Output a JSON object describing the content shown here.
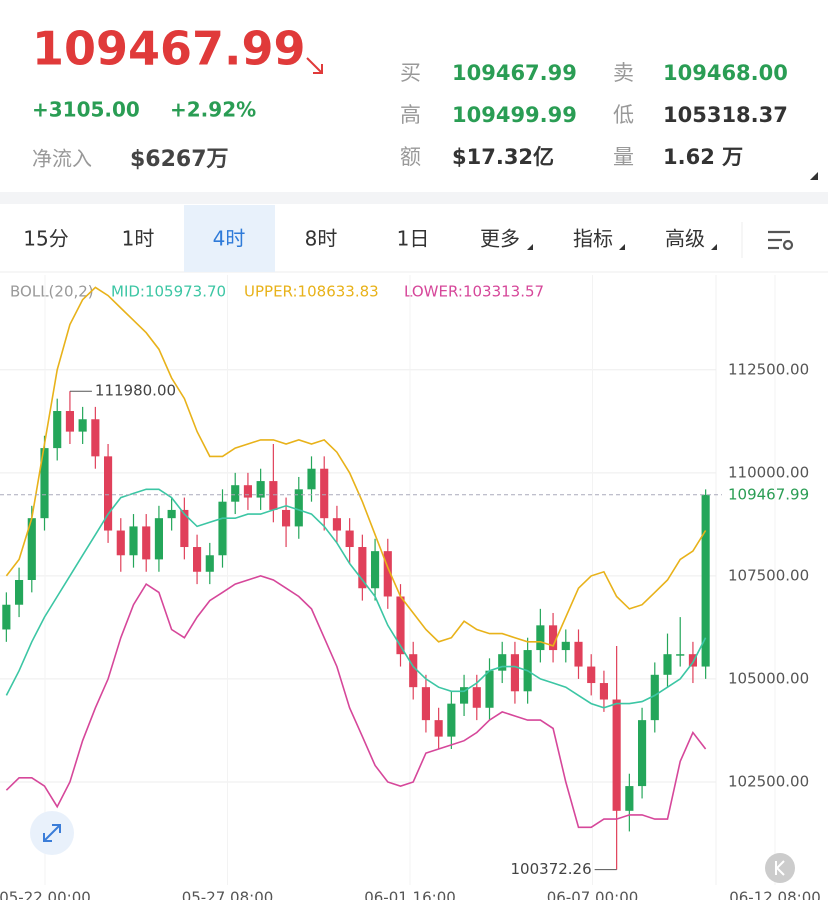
{
  "header": {
    "price": "109467.99",
    "change": "+3105.00",
    "change_pct": "+2.92%",
    "net_inflow_label": "净流入",
    "net_inflow": "$6267万",
    "stats": [
      {
        "label": "买",
        "value": "109467.99",
        "color": "#2a9d54"
      },
      {
        "label": "卖",
        "value": "109468.00",
        "color": "#2a9d54"
      },
      {
        "label": "高",
        "value": "109499.99",
        "color": "#2a9d54"
      },
      {
        "label": "低",
        "value": "105318.37",
        "color": "#333333"
      },
      {
        "label": "额",
        "value": "$17.32亿",
        "color": "#333333"
      },
      {
        "label": "量",
        "value": "1.62 万",
        "color": "#333333"
      }
    ]
  },
  "tabs": [
    "15分",
    "1时",
    "4时",
    "8时",
    "1日",
    "更多",
    "指标",
    "高级"
  ],
  "selected_tab": 2,
  "indicator": {
    "name": "BOLL(20,2)",
    "mid": "MID:105973.70",
    "upper": "UPPER:108633.83",
    "lower": "LOWER:103313.57"
  },
  "chart_data": {
    "type": "candlestick",
    "up_color": "#24a65a",
    "down_color": "#e0405a",
    "open": [
      106200,
      106800,
      107400,
      108900,
      110600,
      111500,
      111000,
      111300,
      110400,
      108600,
      108000,
      108700,
      107900,
      108900,
      109100,
      108200,
      107600,
      108000,
      109300,
      109700,
      109400,
      109800,
      109100,
      108700,
      109600,
      110100,
      108900,
      108600,
      108200,
      107200,
      108100,
      107000,
      105600,
      104800,
      104000,
      103600,
      104400,
      104800,
      104300,
      105200,
      105600,
      104700,
      105700,
      106300,
      105700,
      105900,
      105300,
      104900,
      104500,
      101800,
      102400,
      104000,
      105100,
      105600,
      105600,
      105300
    ],
    "high": [
      107100,
      107700,
      109200,
      110900,
      111800,
      111980,
      111600,
      111600,
      110700,
      108900,
      109000,
      109000,
      109200,
      109400,
      109400,
      108500,
      108300,
      109600,
      110000,
      110000,
      110100,
      110700,
      109400,
      109900,
      110400,
      110400,
      109200,
      108900,
      108500,
      108400,
      108400,
      107300,
      105900,
      105100,
      104300,
      104700,
      105100,
      105100,
      105500,
      105900,
      105900,
      106000,
      106700,
      106600,
      106200,
      106200,
      105600,
      105200,
      105800,
      102700,
      104300,
      105400,
      106100,
      106500,
      105900,
      109600
    ],
    "low": [
      105900,
      106500,
      107100,
      108600,
      110300,
      110700,
      110700,
      110100,
      108300,
      107600,
      107700,
      107600,
      107600,
      108600,
      107900,
      107300,
      107300,
      107700,
      109000,
      109100,
      109100,
      108800,
      108200,
      108400,
      109300,
      108600,
      108300,
      107800,
      106900,
      106900,
      106700,
      105300,
      104500,
      103700,
      103300,
      103300,
      104100,
      104000,
      104000,
      104900,
      104400,
      104400,
      105400,
      105400,
      105400,
      105000,
      104600,
      104200,
      100372.26,
      101300,
      102100,
      103700,
      104800,
      105300,
      104900,
      105000
    ],
    "close": [
      106800,
      107400,
      108900,
      110600,
      111500,
      111000,
      111300,
      110400,
      108600,
      108000,
      108700,
      107900,
      108900,
      109100,
      108200,
      107600,
      108000,
      109300,
      109700,
      109400,
      109800,
      109100,
      108700,
      109600,
      110100,
      108900,
      108600,
      108200,
      107200,
      108100,
      107000,
      105600,
      104800,
      104000,
      103600,
      104400,
      104800,
      104300,
      105200,
      105600,
      104700,
      105700,
      106300,
      105700,
      105900,
      105300,
      104900,
      104500,
      101800,
      102400,
      104000,
      105100,
      105600,
      105600,
      105300,
      109467.99
    ],
    "bands": {
      "upper": {
        "color": "#e8b21a",
        "values": [
          107500,
          107900,
          108900,
          110700,
          112500,
          113600,
          114200,
          114500,
          114300,
          114000,
          113700,
          113400,
          113000,
          112300,
          111800,
          111000,
          110400,
          110400,
          110600,
          110700,
          110800,
          110800,
          110700,
          110800,
          110700,
          110800,
          110500,
          110000,
          109300,
          108500,
          107700,
          107000,
          106600,
          106200,
          105900,
          106000,
          106400,
          106200,
          106100,
          106100,
          106000,
          105900,
          105900,
          105800,
          106500,
          107200,
          107500,
          107600,
          107000,
          106700,
          106800,
          107100,
          107400,
          107900,
          108100,
          108600
        ]
      },
      "mid": {
        "color": "#3cc6a4",
        "values": [
          104600,
          105200,
          105900,
          106500,
          107000,
          107500,
          108000,
          108500,
          109000,
          109400,
          109500,
          109600,
          109600,
          109400,
          109000,
          108700,
          108800,
          108900,
          108900,
          109000,
          109000,
          109100,
          109200,
          109100,
          109000,
          108700,
          108300,
          107800,
          107400,
          107000,
          106300,
          105800,
          105300,
          105000,
          104800,
          104700,
          104700,
          104900,
          105200,
          105300,
          105300,
          105200,
          105000,
          104900,
          104800,
          104600,
          104400,
          104300,
          104400,
          104400,
          104450,
          104600,
          104800,
          105000,
          105400,
          106000
        ]
      },
      "lower": {
        "color": "#d6479a",
        "values": [
          102300,
          102600,
          102600,
          102400,
          101900,
          102500,
          103500,
          104300,
          105000,
          106000,
          106800,
          107300,
          107100,
          106200,
          106000,
          106500,
          106900,
          107100,
          107300,
          107400,
          107500,
          107400,
          107200,
          107000,
          106700,
          106000,
          105300,
          104300,
          103600,
          102900,
          102500,
          102400,
          102500,
          103200,
          103300,
          103400,
          103500,
          103700,
          104000,
          104200,
          104100,
          104000,
          104000,
          103800,
          102500,
          101400,
          101400,
          101600,
          101600,
          101700,
          101700,
          101600,
          101600,
          103000,
          103700,
          103300
        ]
      }
    },
    "ylim": [
      100000,
      114800
    ],
    "yticks": [
      {
        "value": 102500,
        "label": "102500.00"
      },
      {
        "value": 105000,
        "label": "105000.00"
      },
      {
        "value": 107500,
        "label": "107500.00"
      },
      {
        "value": 110000,
        "label": "110000.00"
      },
      {
        "value": 112500,
        "label": "112500.00"
      }
    ],
    "grid": true,
    "xtick_labels": [
      "05-22 00:00",
      "05-27 08:00",
      "06-01 16:00",
      "06-07 00:00",
      "06-12 08:00"
    ],
    "annotations": [
      {
        "value": 111980,
        "label": "111980.00"
      },
      {
        "value": 100372.26,
        "label": "100372.26"
      }
    ],
    "last_price": {
      "value": 109467.99,
      "label": "109467.99",
      "color": "#2a9d54"
    }
  }
}
